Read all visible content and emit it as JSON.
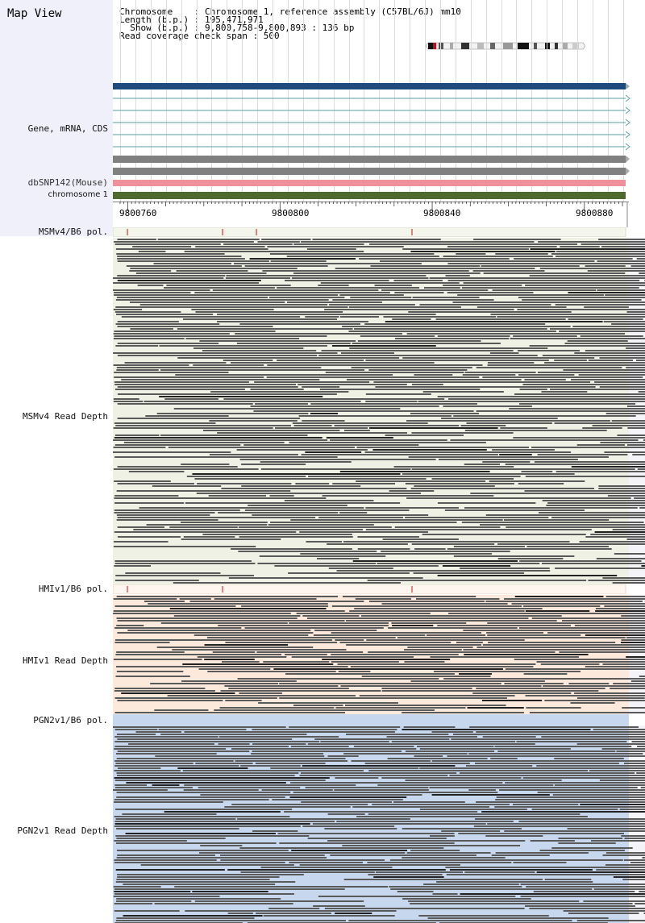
{
  "title": "Map View",
  "info": {
    "line1": "Chromosome    : Chromosome 1, reference assembly (C57BL/6J) mm10",
    "line2": "Length (b.p.) : 195,471,971",
    "line3": "  Show (b.p.) : 9,800,758-9,800,893 : 136 bp",
    "line4": "Read coverage check span : 500"
  },
  "tracks": {
    "gene": "Gene, mRNA, CDS",
    "dbsnp": "dbSNP142(Mouse)",
    "chromosome": "chromosome 1"
  },
  "ruler": {
    "labels": [
      "9800760",
      "9800800",
      "9800840",
      "9800880"
    ]
  },
  "samples": [
    {
      "pol": "MSMv4/B6 pol.",
      "depth": "MSMv4 Read Depth",
      "bg": "#eef1e4"
    },
    {
      "pol": "HMIv1/B6 pol.",
      "depth": "HMIv1 Read Depth",
      "bg": "#fde9dc"
    },
    {
      "pol": "PGN2v1/B6 pol.",
      "depth": "PGN2v1 Read Depth",
      "bg": "#c6d7ee"
    }
  ],
  "colors": {
    "gene_main": "#1f4a7e",
    "mrna": "#5a9fa6",
    "cds": "#808080",
    "dbsnp": "#f0909a",
    "chromosome": "#4f6a2e",
    "read": "#5a5a5a",
    "read_dark": "#222222",
    "snp_mark": "#d01010"
  }
}
